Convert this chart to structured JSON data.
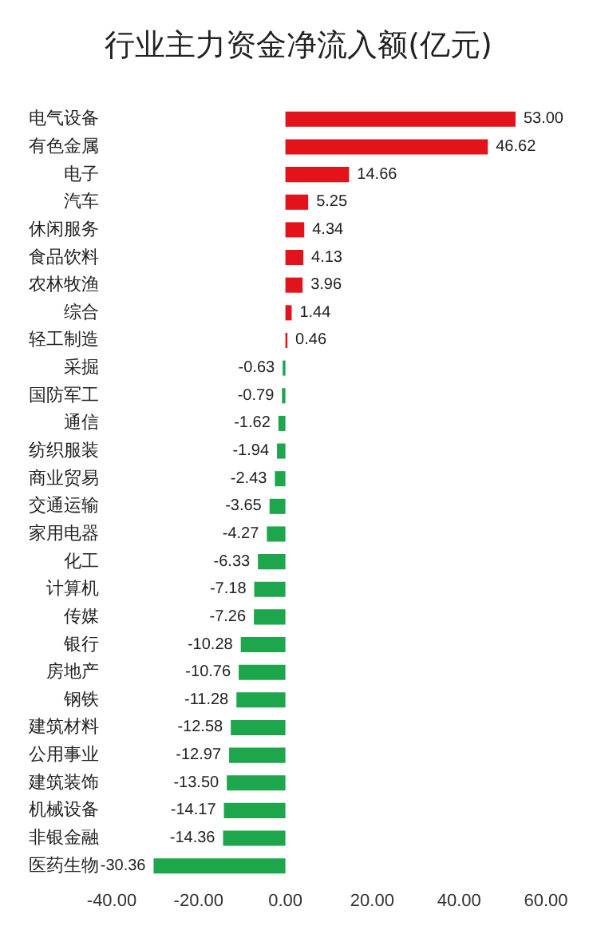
{
  "chart_data": {
    "type": "bar",
    "title": "行业主力资金净流入额(亿元)",
    "orientation": "horizontal",
    "categories": [
      "电气设备",
      "有色金属",
      "电子",
      "汽车",
      "休闲服务",
      "食品饮料",
      "农林牧渔",
      "综合",
      "轻工制造",
      "采掘",
      "国防军工",
      "通信",
      "纺织服装",
      "商业贸易",
      "交通运输",
      "家用电器",
      "化工",
      "计算机",
      "传媒",
      "银行",
      "房地产",
      "钢铁",
      "建筑材料",
      "公用事业",
      "建筑装饰",
      "机械设备",
      "非银金融",
      "医药生物"
    ],
    "values": [
      53.0,
      46.62,
      14.66,
      5.25,
      4.34,
      4.13,
      3.96,
      1.44,
      0.46,
      -0.63,
      -0.79,
      -1.62,
      -1.94,
      -2.43,
      -3.65,
      -4.27,
      -6.33,
      -7.18,
      -7.26,
      -10.28,
      -10.76,
      -11.28,
      -12.58,
      -12.97,
      -13.5,
      -14.17,
      -14.36,
      -30.36
    ],
    "value_labels": [
      "53.00",
      "46.62",
      "14.66",
      "5.25",
      "4.34",
      "4.13",
      "3.96",
      "1.44",
      "0.46",
      "-0.63",
      "-0.79",
      "-1.62",
      "-1.94",
      "-2.43",
      "-3.65",
      "-4.27",
      "-6.33",
      "-7.18",
      "-7.26",
      "-10.28",
      "-10.76",
      "-11.28",
      "-12.58",
      "-12.97",
      "-13.50",
      "-14.17",
      "-14.36",
      "-30.36"
    ],
    "colors": [
      "#e3131b",
      "#e3131b",
      "#e3131b",
      "#e3131b",
      "#e3131b",
      "#e3131b",
      "#e3131b",
      "#e3131b",
      "#e3131b",
      "#1da64c",
      "#1da64c",
      "#1da64c",
      "#1da64c",
      "#1da64c",
      "#1da64c",
      "#1da64c",
      "#1da64c",
      "#1da64c",
      "#1da64c",
      "#1da64c",
      "#1da64c",
      "#1da64c",
      "#1da64c",
      "#1da64c",
      "#1da64c",
      "#1da64c",
      "#1da64c",
      "#1da64c"
    ],
    "xlim": [
      -40,
      60
    ],
    "xticks": [
      {
        "value": -40,
        "label": "-40.00"
      },
      {
        "value": -20,
        "label": "-20.00"
      },
      {
        "value": 0,
        "label": "0.00"
      },
      {
        "value": 20,
        "label": "20.00"
      },
      {
        "value": 40,
        "label": "40.00"
      },
      {
        "value": 60,
        "label": "60.00"
      }
    ]
  }
}
